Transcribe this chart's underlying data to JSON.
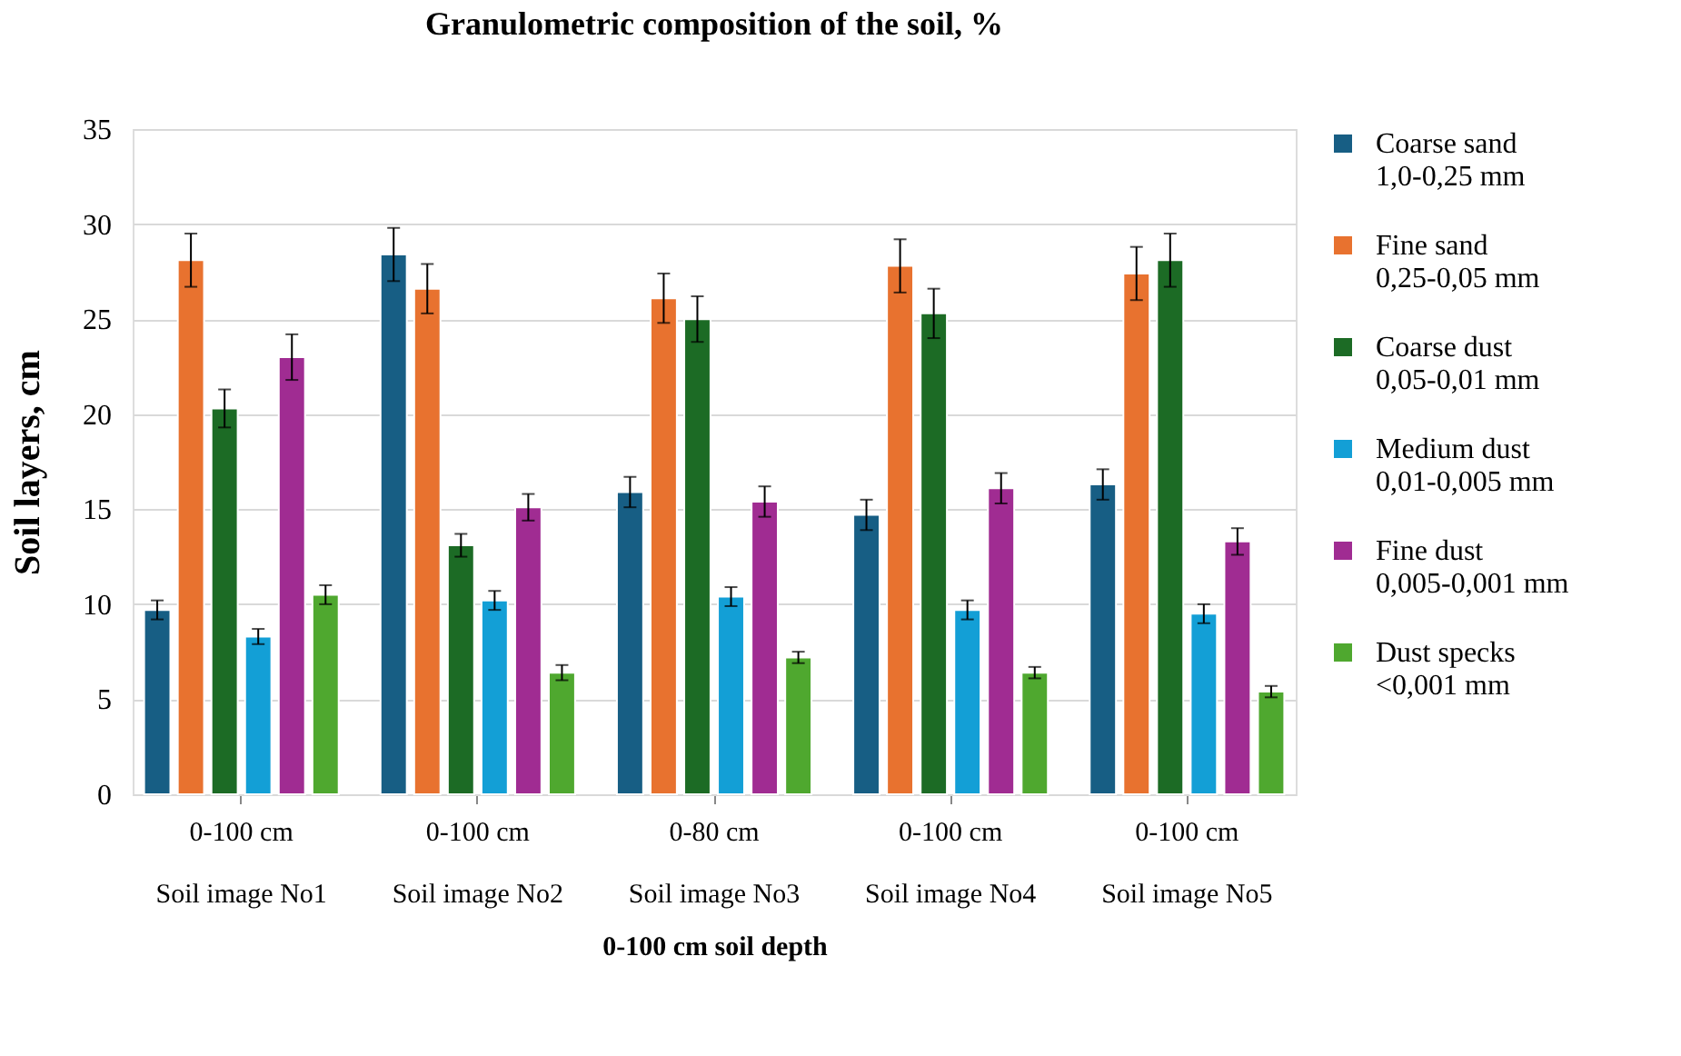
{
  "chart_data": {
    "type": "bar",
    "title": "Granulometric composition of the soil, %",
    "xlabel": "0-100 cm soil depth",
    "ylabel": "Soil layers, cm",
    "categories": [
      "0-100 cm\nSoil image  No1",
      "0-100 cm\nSoil image  No2",
      "0-80 cm\nSoil image  No3",
      "0-100 cm\nSoil image  No4",
      "0-100 cm\nSoil image  No5"
    ],
    "series": [
      {
        "name": "Coarse sand\n1,0-0,25 mm",
        "color": "#175e84",
        "values": [
          9.7,
          28.4,
          15.9,
          14.7,
          16.3
        ],
        "errors": [
          0.5,
          1.4,
          0.8,
          0.8,
          0.8
        ]
      },
      {
        "name": "Fine sand\n0,25-0,05 mm",
        "color": "#e8722f",
        "values": [
          28.1,
          26.6,
          26.1,
          27.8,
          27.4
        ],
        "errors": [
          1.4,
          1.3,
          1.3,
          1.4,
          1.4
        ]
      },
      {
        "name": "Coarse dust\n0,05-0,01 mm",
        "color": "#1c6b25",
        "values": [
          20.3,
          13.1,
          25.0,
          25.3,
          28.1
        ],
        "errors": [
          1.0,
          0.6,
          1.2,
          1.3,
          1.4
        ]
      },
      {
        "name": "Medium dust\n0,01-0,005 mm",
        "color": "#139fd6",
        "values": [
          8.3,
          10.2,
          10.4,
          9.7,
          9.5
        ],
        "errors": [
          0.4,
          0.5,
          0.5,
          0.5,
          0.5
        ]
      },
      {
        "name": "Fine dust\n0,005-0,001 mm",
        "color": "#a02c92",
        "values": [
          23.0,
          15.1,
          15.4,
          16.1,
          13.3
        ],
        "errors": [
          1.2,
          0.7,
          0.8,
          0.8,
          0.7
        ]
      },
      {
        "name": "Dust specks\n<0,001 mm",
        "color": "#4fa82f",
        "values": [
          10.5,
          6.4,
          7.2,
          6.4,
          5.4
        ],
        "errors": [
          0.5,
          0.4,
          0.3,
          0.3,
          0.3
        ]
      }
    ],
    "ylim": [
      0,
      35
    ],
    "yticks": [
      0,
      5,
      10,
      15,
      20,
      25,
      30,
      35
    ],
    "grid": "y",
    "legend": "right"
  }
}
